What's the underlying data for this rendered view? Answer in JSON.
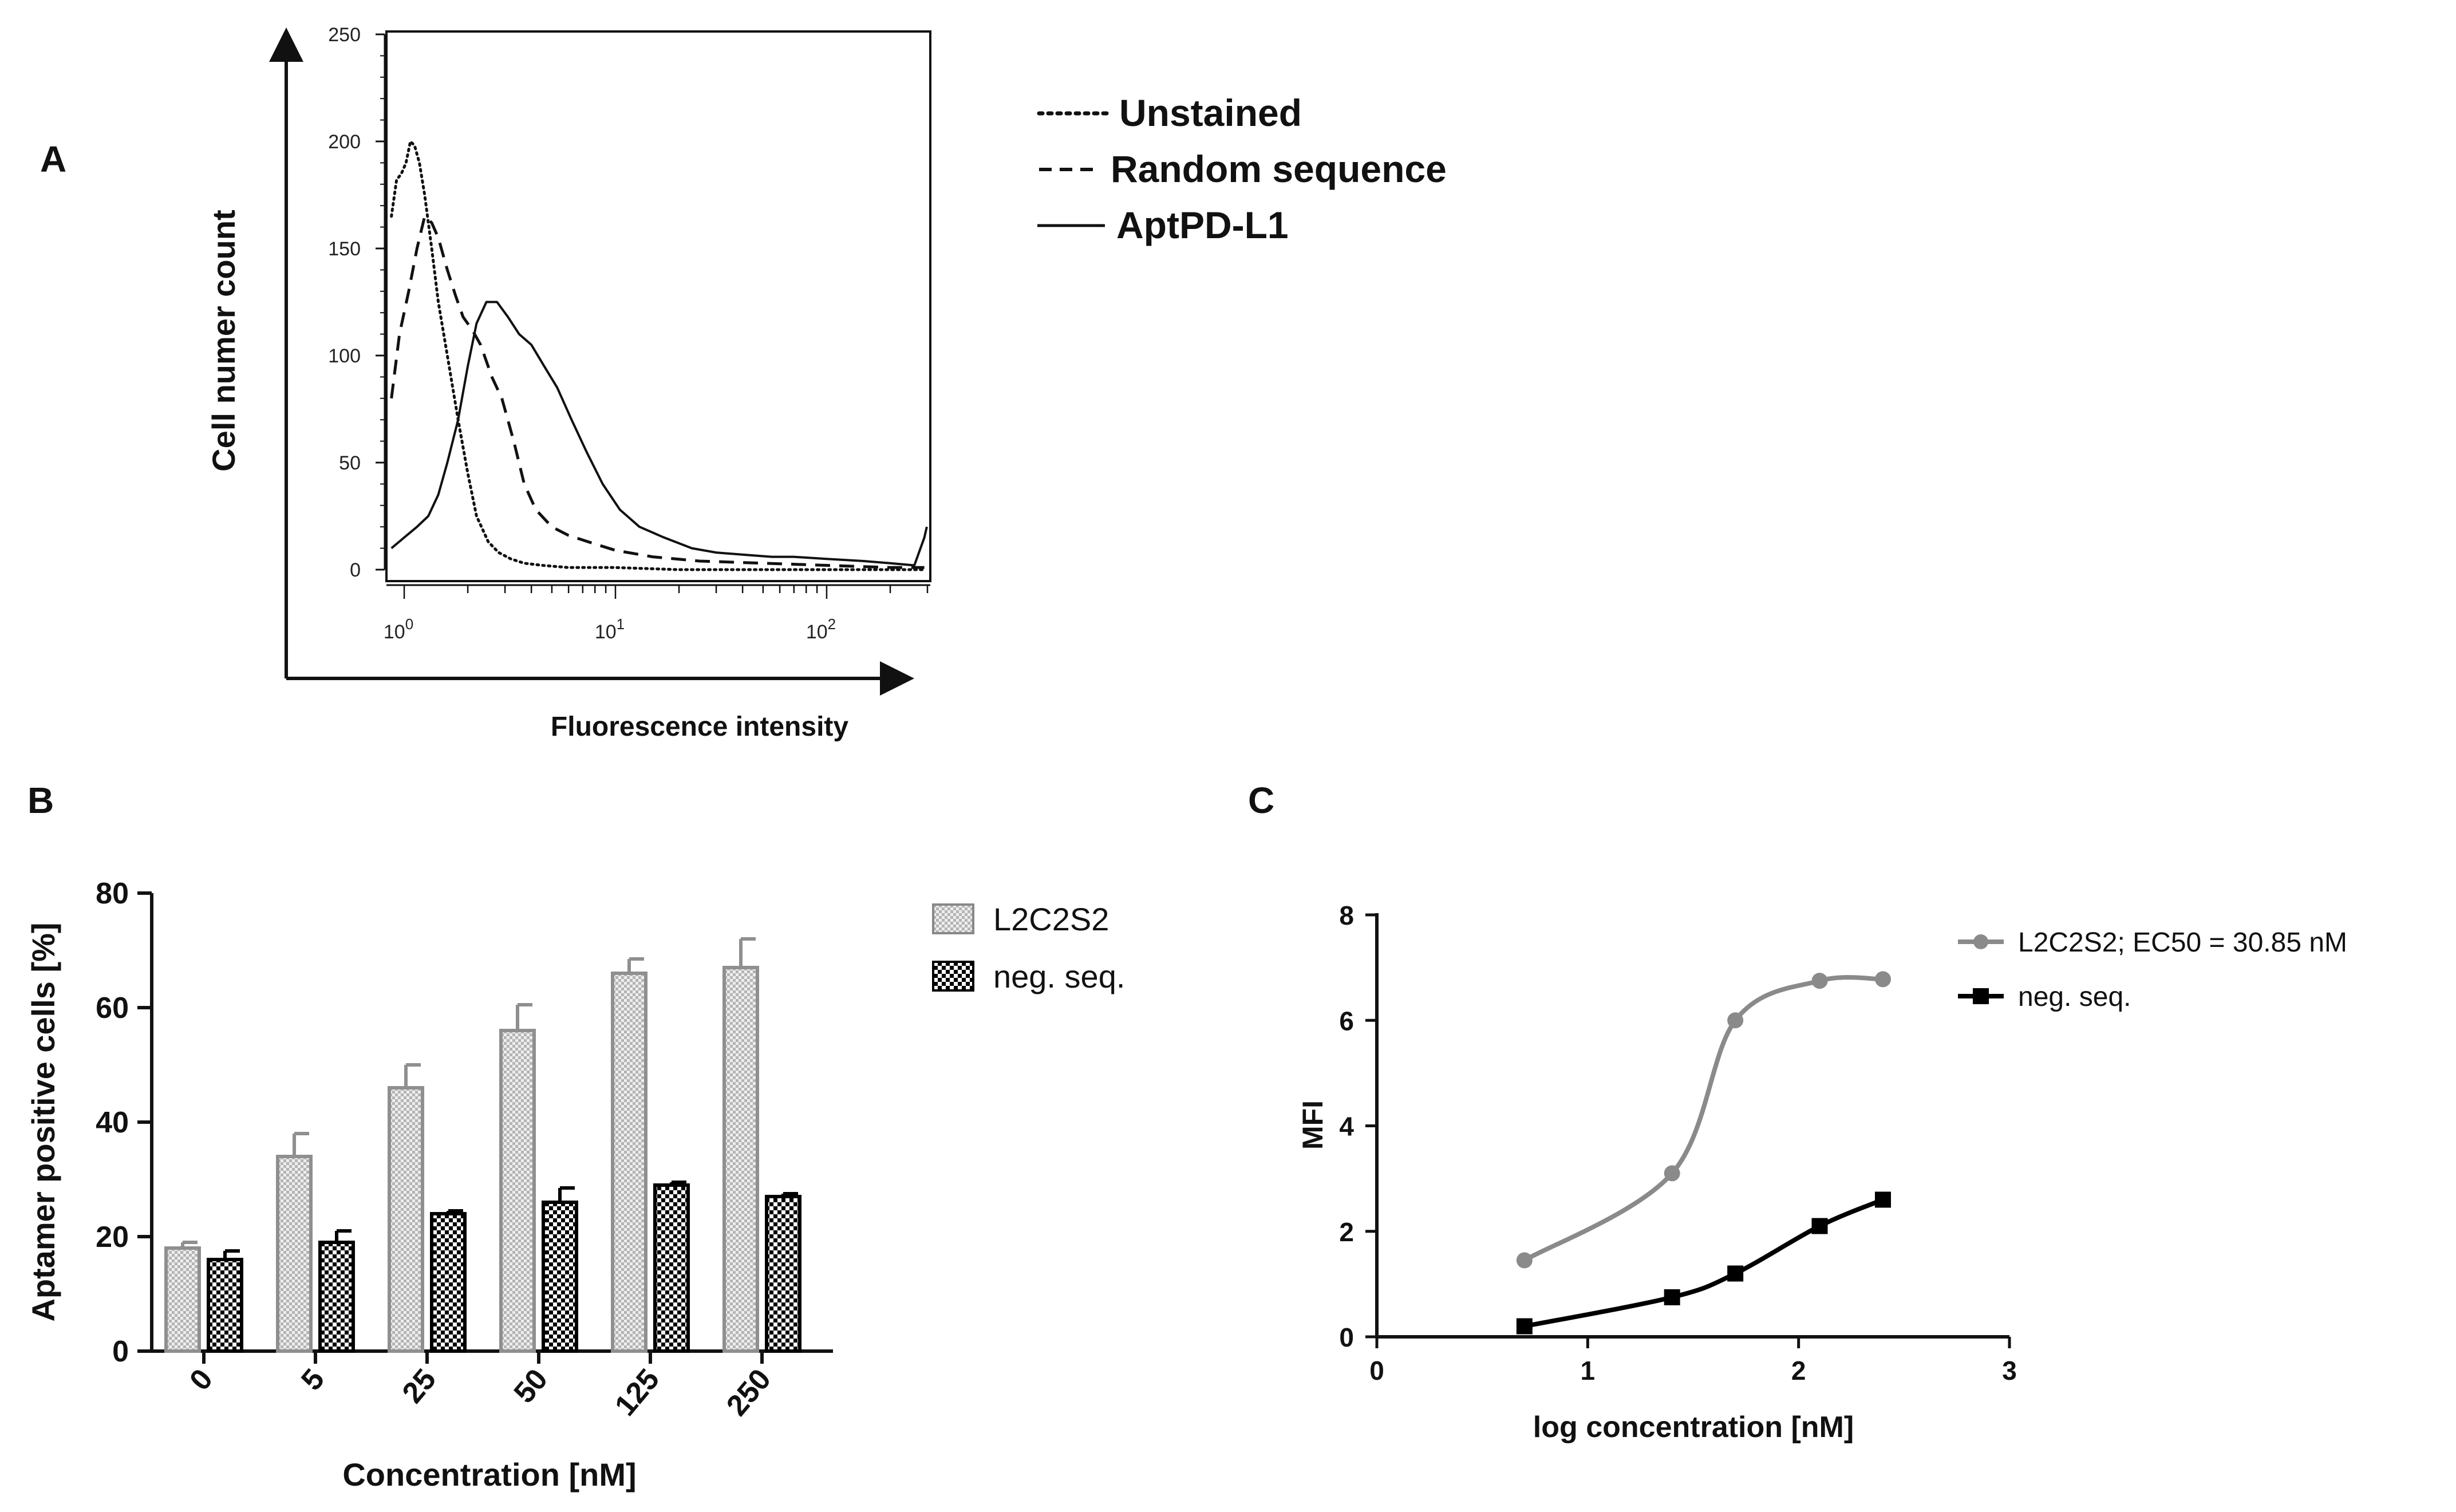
{
  "chart_data": [
    {
      "panel": "A",
      "type": "line",
      "title": "",
      "xlabel": "Fluorescence intensity",
      "ylabel": "Cell numer count",
      "x_scale": "log",
      "xlim": [
        0.85,
        300
      ],
      "ylim": [
        0,
        250
      ],
      "x_ticks": [
        {
          "value": 1,
          "base": "10",
          "exp": "0"
        },
        {
          "value": 10,
          "base": "10",
          "exp": "1"
        },
        {
          "value": 100,
          "base": "10",
          "exp": "2"
        }
      ],
      "y_ticks": [
        "0",
        "50",
        "100",
        "150",
        "200",
        "250"
      ],
      "y_tick_values": [
        0,
        50,
        100,
        150,
        200,
        250
      ],
      "series": [
        {
          "name": "Unstained",
          "style": "dotted",
          "x": [
            0.87,
            0.92,
            0.97,
            1.02,
            1.07,
            1.12,
            1.18,
            1.25,
            1.35,
            1.45,
            1.6,
            1.8,
            2.0,
            2.2,
            2.5,
            2.8,
            3.2,
            3.7,
            4.5,
            6,
            10,
            20,
            50,
            100,
            200,
            290
          ],
          "values": [
            165,
            182,
            185,
            190,
            200,
            198,
            190,
            175,
            150,
            125,
            100,
            70,
            45,
            25,
            13,
            8,
            5,
            3,
            2,
            1,
            1,
            0,
            0,
            0,
            0,
            0
          ]
        },
        {
          "name": "Random sequence",
          "style": "dashed",
          "x": [
            0.87,
            0.95,
            1.05,
            1.15,
            1.25,
            1.35,
            1.45,
            1.6,
            1.75,
            1.9,
            2.1,
            2.3,
            2.6,
            2.9,
            3.3,
            3.7,
            4.2,
            5,
            6,
            8,
            10,
            15,
            25,
            50,
            100,
            200,
            290
          ],
          "values": [
            80,
            110,
            130,
            150,
            165,
            162,
            155,
            140,
            128,
            118,
            112,
            105,
            90,
            80,
            60,
            40,
            28,
            20,
            16,
            12,
            9,
            6,
            4,
            3,
            2,
            1,
            1
          ]
        },
        {
          "name": "AptPD-L1",
          "style": "solid",
          "x": [
            0.87,
            1.0,
            1.15,
            1.3,
            1.45,
            1.6,
            1.8,
            2.0,
            2.2,
            2.45,
            2.75,
            3.1,
            3.5,
            4.0,
            4.6,
            5.3,
            6.2,
            7.3,
            8.7,
            10.5,
            13,
            17,
            23,
            30,
            40,
            55,
            70,
            100,
            150,
            200,
            260,
            290,
            298
          ],
          "values": [
            10,
            15,
            20,
            25,
            35,
            50,
            70,
            95,
            115,
            125,
            125,
            118,
            110,
            105,
            95,
            85,
            70,
            55,
            40,
            28,
            20,
            15,
            10,
            8,
            7,
            6,
            6,
            5,
            4,
            3,
            2,
            15,
            20
          ]
        }
      ],
      "legend": [
        "Unstained",
        "Random sequence",
        "AptPD-L1"
      ]
    },
    {
      "panel": "B",
      "type": "bar",
      "xlabel": "Concentration [nM]",
      "ylabel": "Aptamer positive cells [%]",
      "ylim": [
        0,
        80
      ],
      "y_ticks": [
        "0",
        "20",
        "40",
        "60",
        "80"
      ],
      "y_tick_values": [
        0,
        20,
        40,
        60,
        80
      ],
      "categories": [
        "0",
        "5",
        "25",
        "50",
        "125",
        "250"
      ],
      "series": [
        {
          "name": "L2C2S2",
          "color": "#9a9a9a",
          "values": [
            18,
            34,
            46,
            56,
            66,
            67
          ],
          "errors": [
            1,
            4,
            4,
            4.5,
            2.5,
            5
          ]
        },
        {
          "name": "neg. seq.",
          "color": "#000000",
          "values": [
            16,
            19,
            24,
            26,
            29,
            27
          ],
          "errors": [
            1.5,
            2,
            0.5,
            2.5,
            0.5,
            0.5
          ]
        }
      ],
      "legend": [
        "L2C2S2",
        "neg. seq."
      ]
    },
    {
      "panel": "C",
      "type": "line",
      "xlabel": "log concentration [nM]",
      "ylabel": "MFI",
      "xlim": [
        0,
        3
      ],
      "ylim": [
        0,
        8
      ],
      "x_ticks": [
        "0",
        "1",
        "2",
        "3"
      ],
      "x_tick_values": [
        0,
        1,
        2,
        3
      ],
      "y_ticks": [
        "0",
        "2",
        "4",
        "6",
        "8"
      ],
      "y_tick_values": [
        0,
        2,
        4,
        6,
        8
      ],
      "series": [
        {
          "name": "L2C2S2; EC50 = 30.85 nM",
          "color": "#8a8a8a",
          "marker": "circle",
          "x": [
            0.7,
            1.4,
            1.7,
            2.1,
            2.4
          ],
          "values": [
            1.45,
            3.1,
            6.0,
            6.75,
            6.78
          ]
        },
        {
          "name": "neg. seq.",
          "color": "#000000",
          "marker": "square",
          "x": [
            0.7,
            1.4,
            1.7,
            2.1,
            2.4
          ],
          "values": [
            0.2,
            0.75,
            1.2,
            2.1,
            2.6
          ]
        }
      ],
      "legend": [
        "L2C2S2; EC50 = 30.85 nM",
        "neg. seq."
      ]
    }
  ]
}
